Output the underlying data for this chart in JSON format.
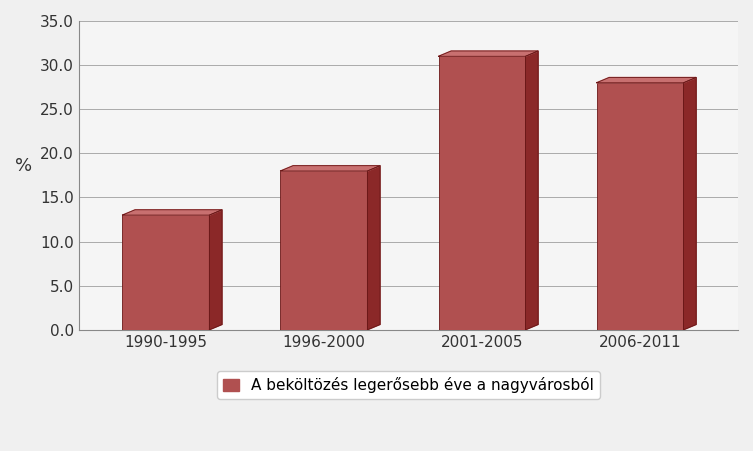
{
  "categories": [
    "1990-1995",
    "1996-2000",
    "2001-2005",
    "2006-2011"
  ],
  "values": [
    13.0,
    18.0,
    31.0,
    28.0
  ],
  "bar_color_main": "#B05050",
  "bar_color_top": "#C87070",
  "bar_color_right": "#8B2828",
  "bar_color_edge": "#6B1818",
  "ylabel": "%",
  "ylim": [
    0,
    35
  ],
  "yticks": [
    0.0,
    5.0,
    10.0,
    15.0,
    20.0,
    25.0,
    30.0,
    35.0
  ],
  "legend_label": "A beköltözés legerősebb éve a nagyvárosból",
  "background_color": "#f0f0f0",
  "plot_bg_color": "#f5f5f5",
  "grid_color": "#aaaaaa",
  "bar_width": 0.55,
  "depth": 0.4,
  "font_color": "#333333"
}
